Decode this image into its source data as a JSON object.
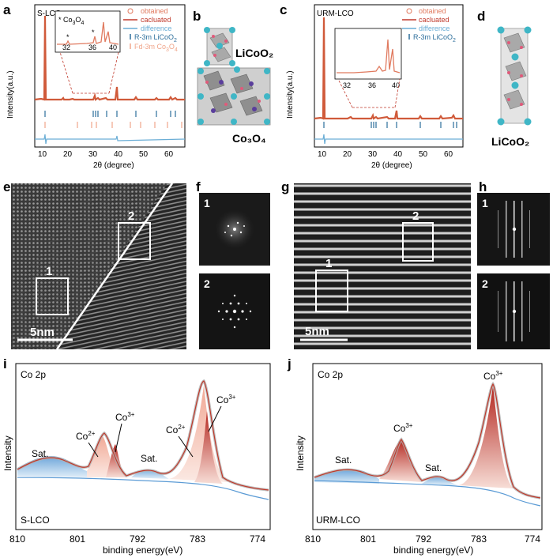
{
  "panels": {
    "a": {
      "letter": "a",
      "sample": "S-LCO",
      "ylabel": "Intensity(a.u.)",
      "xlabel": "2θ (degree)",
      "xticks": [
        "10",
        "20",
        "30",
        "40",
        "50",
        "60"
      ],
      "legend": [
        "obtained",
        "calculated",
        "difference",
        "R-3m LiCoO",
        "Fd-3m Co",
        "O"
      ],
      "legend_text": {
        "obtained": "obtained",
        "calculated": "cacluated",
        "difference": "difference",
        "r3m": "R-3m LiCoO",
        "r3m_sub": "2",
        "fd3m": "Fd-3m Co",
        "fd3m_sub1": "3",
        "fd3m_o": "O",
        "fd3m_sub2": "4"
      },
      "inset": {
        "label_star": "* Co",
        "label_sub1": "3",
        "label_o": "O",
        "label_sub2": "4",
        "xticks": [
          "32",
          "36",
          "40"
        ]
      },
      "colors": {
        "obtained": "#e07a5f",
        "calculated": "#c0392b",
        "difference": "#6baed6",
        "r3m": "#2c6e9b",
        "fd3m": "#f0a58a"
      }
    },
    "b": {
      "letter": "b",
      "label_top": "LiCoO₂",
      "label_bottom": "Co₃O₄"
    },
    "c": {
      "letter": "c",
      "sample": "URM-LCO",
      "ylabel": "Intensity(a.u.)",
      "xlabel": "2θ (degree)",
      "xticks": [
        "10",
        "20",
        "30",
        "40",
        "50",
        "60"
      ],
      "legend_text": {
        "obtained": "obtained",
        "calculated": "cacluated",
        "difference": "difference",
        "r3m": "R-3m LiCoO",
        "r3m_sub": "2"
      },
      "inset": {
        "xticks": [
          "32",
          "36",
          "40"
        ]
      }
    },
    "d": {
      "letter": "d",
      "label": "LiCoO₂"
    },
    "e": {
      "letter": "e",
      "region1": "1",
      "region2": "2",
      "scale": "5nm"
    },
    "f": {
      "letter": "f",
      "label1": "1",
      "label2": "2"
    },
    "g": {
      "letter": "g",
      "region1": "1",
      "region2": "2",
      "scale": "5nm"
    },
    "h": {
      "letter": "h",
      "label1": "1",
      "label2": "2"
    },
    "i": {
      "letter": "i",
      "title": "Co 2p",
      "sample": "S-LCO",
      "ylabel": "Intensity",
      "xlabel": "binding energy(eV)",
      "xticks": [
        "810",
        "801",
        "792",
        "783",
        "774"
      ],
      "annotations": {
        "sat1": "Sat.",
        "co2a": "Co",
        "co2a_sup": "2+",
        "co3a": "Co",
        "co3a_sup": "3+",
        "sat2": "Sat.",
        "co2b": "Co",
        "co2b_sup": "2+",
        "co3b": "Co",
        "co3b_sup": "3+"
      }
    },
    "j": {
      "letter": "j",
      "title": "Co 2p",
      "sample": "URM-LCO",
      "ylabel": "Intensity",
      "xlabel": "binding energy(eV)",
      "xticks": [
        "810",
        "801",
        "792",
        "783",
        "774"
      ],
      "annotations": {
        "sat1": "Sat.",
        "co3a": "Co",
        "co3a_sup": "3+",
        "sat2": "Sat.",
        "co3b": "Co",
        "co3b_sup": "3+"
      }
    }
  }
}
